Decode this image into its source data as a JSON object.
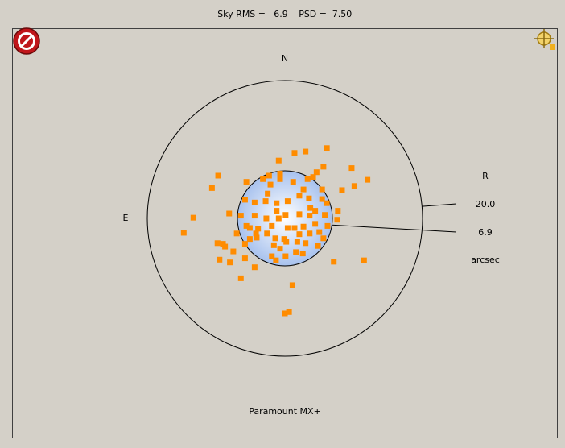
{
  "chart_data": {
    "type": "target-scatter",
    "header": {
      "rms_label": "Sky RMS =",
      "rms_value": "6.9",
      "psd_label": "PSD =",
      "psd_value": "7.50"
    },
    "compass": {
      "north": "N",
      "east": "E"
    },
    "ring_title": "R",
    "rings": [
      {
        "value": 20,
        "label": "20.0"
      },
      6.9
    ],
    "unit": "arcsec",
    "footer": "Paramount MX+",
    "color": "#ff8c00",
    "x": [
      6.1,
      3.0,
      1.4,
      -0.9,
      5.6,
      9.7,
      -9.7,
      -2.3,
      12.0,
      -5.6,
      -10.6,
      10.1,
      8.3,
      5.4,
      -13.3,
      -14.7,
      -9.5,
      -8.0,
      -6.4,
      11.5,
      7.1,
      1.1,
      0.6,
      0.0,
      -9.8,
      -9.0,
      -7.5,
      -5.8,
      -4.4,
      -0.7,
      -0.7,
      -3.2,
      -2.1,
      1.2,
      3.3,
      4.6,
      4.1,
      -5.8,
      -4.4,
      -2.8,
      -1.2,
      0.4,
      2.1,
      3.5,
      5.4,
      6.1,
      -8.1,
      -6.4,
      -4.4,
      -2.7,
      -1.2,
      -0.9,
      0.1,
      2.1,
      3.6,
      4.4,
      5.8,
      7.7,
      7.6,
      -5.6,
      -5.1,
      -3.9,
      -1.9,
      0.4,
      1.4,
      2.7,
      4.4,
      6.2,
      -7.0,
      -4.2,
      -2.6,
      -1.4,
      -0.1,
      2.1,
      3.6,
      5.0,
      5.6,
      -4.1,
      -5.8,
      -1.6,
      0.2,
      1.8,
      3.0,
      4.8,
      -0.7,
      1.6,
      2.6,
      -1.9,
      -1.3,
      0.1,
      -8.7,
      -5.1,
      3.7,
      -2.5,
      2.7
    ],
    "y": [
      10.2,
      9.7,
      9.5,
      8.4,
      7.5,
      7.3,
      6.2,
      6.2,
      5.6,
      5.3,
      4.4,
      4.7,
      4.1,
      4.2,
      0.1,
      -2.1,
      -6.0,
      -6.4,
      -8.7,
      -6.1,
      -6.3,
      -9.7,
      -13.6,
      -13.8,
      -3.6,
      -3.7,
      -4.8,
      -5.8,
      -7.1,
      6.5,
      5.7,
      5.7,
      4.9,
      5.3,
      5.7,
      6.7,
      6.0,
      2.7,
      2.3,
      2.5,
      2.2,
      2.5,
      3.3,
      2.9,
      2.8,
      2.2,
      0.7,
      0.4,
      0.4,
      0.0,
      1.1,
      0.0,
      0.5,
      0.6,
      0.4,
      1.1,
      0.5,
      1.1,
      -0.2,
      -1.1,
      -1.4,
      -1.5,
      -1.1,
      -1.4,
      -1.4,
      -1.2,
      -0.8,
      -1.1,
      -2.2,
      -2.2,
      -2.2,
      -2.9,
      -3.0,
      -2.3,
      -2.2,
      -2.0,
      -2.9,
      -2.8,
      -3.7,
      -3.9,
      -3.4,
      -3.4,
      -3.6,
      -4.0,
      -4.4,
      -4.9,
      -5.1,
      -5.5,
      -6.1,
      -5.5,
      -4.1,
      -3.0,
      1.5,
      3.6,
      4.2
    ]
  }
}
